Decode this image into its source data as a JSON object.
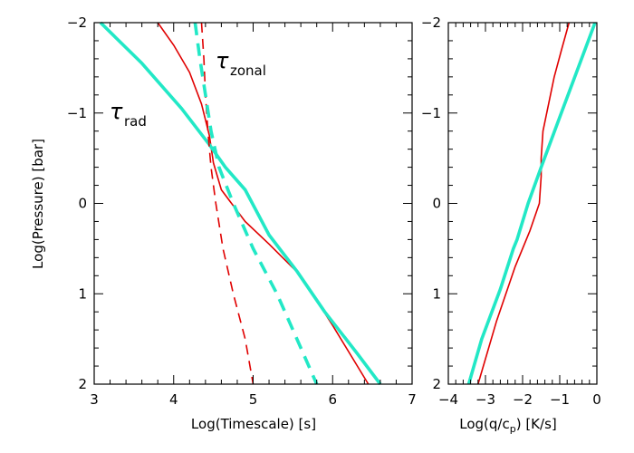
{
  "chart_data": [
    {
      "type": "line",
      "xlabel": "Log(Timescale)  [s]",
      "ylabel": "Log(Pressure)  [bar]",
      "xlim": [
        3,
        7
      ],
      "ylim": [
        2,
        -2
      ],
      "xticks": [
        "3",
        "4",
        "5",
        "6",
        "7"
      ],
      "yticks": [
        "−2",
        "−1",
        "0",
        "1",
        "2"
      ],
      "annotations": [
        {
          "symbol": "τ",
          "subscript": "rad"
        },
        {
          "symbol": "τ",
          "subscript": "zonal"
        }
      ],
      "series": [
        {
          "name": "tau_rad (red)",
          "color": "#e00000",
          "style": "solid",
          "x": [
            3.8,
            4.0,
            4.2,
            4.35,
            4.45,
            4.5,
            4.6,
            4.9,
            5.2,
            5.6,
            6.0,
            6.45
          ],
          "y": [
            -2.0,
            -1.75,
            -1.45,
            -1.1,
            -0.75,
            -0.45,
            -0.15,
            0.2,
            0.45,
            0.8,
            1.35,
            2.0
          ]
        },
        {
          "name": "tau_rad (cyan)",
          "color": "#22e8c6",
          "style": "solid",
          "x": [
            3.08,
            3.6,
            4.1,
            4.45,
            4.65,
            4.9,
            5.2,
            5.55,
            5.9,
            6.3,
            6.6
          ],
          "y": [
            -2.0,
            -1.55,
            -1.05,
            -0.65,
            -0.4,
            -0.15,
            0.35,
            0.75,
            1.2,
            1.65,
            2.0
          ]
        },
        {
          "name": "tau_zonal (red)",
          "color": "#e00000",
          "style": "dashed",
          "x": [
            4.35,
            4.38,
            4.4,
            4.43,
            4.47,
            4.53,
            4.62,
            4.75,
            4.9,
            5.0
          ],
          "y": [
            -2.0,
            -1.6,
            -1.2,
            -0.8,
            -0.4,
            0.0,
            0.5,
            1.0,
            1.5,
            2.0
          ]
        },
        {
          "name": "tau_zonal (cyan)",
          "color": "#22e8c6",
          "style": "dashed",
          "x": [
            4.27,
            4.33,
            4.4,
            4.47,
            4.57,
            4.75,
            5.0,
            5.3,
            5.55,
            5.8
          ],
          "y": [
            -2.0,
            -1.6,
            -1.2,
            -0.8,
            -0.4,
            0.0,
            0.5,
            1.0,
            1.5,
            2.0
          ]
        }
      ]
    },
    {
      "type": "line",
      "xlabel": "Log(q/c",
      "xlabel_sub": "p",
      "xlabel_tail": ")  [K/s]",
      "xlim": [
        -4,
        0
      ],
      "ylim": [
        2,
        -2
      ],
      "xticks": [
        "−4",
        "−3",
        "−2",
        "−1",
        "0"
      ],
      "yticks": [
        "−2",
        "−1",
        "0",
        "1",
        "2"
      ],
      "series": [
        {
          "name": "heating (red)",
          "color": "#e00000",
          "style": "solid",
          "x": [
            -0.75,
            -0.95,
            -1.15,
            -1.3,
            -1.45,
            -1.5,
            -1.5,
            -1.55,
            -1.8,
            -2.2,
            -2.7,
            -3.2
          ],
          "y": [
            -2.0,
            -1.7,
            -1.4,
            -1.1,
            -0.8,
            -0.5,
            -0.3,
            0.0,
            0.3,
            0.7,
            1.3,
            2.0
          ]
        },
        {
          "name": "heating (cyan)",
          "color": "#22e8c6",
          "style": "solid",
          "x": [
            -0.05,
            -0.55,
            -1.05,
            -1.5,
            -1.85,
            -2.15,
            -2.25,
            -2.6,
            -3.1,
            -3.45
          ],
          "y": [
            -2.0,
            -1.45,
            -0.9,
            -0.4,
            0.0,
            0.4,
            0.5,
            0.95,
            1.5,
            2.0
          ]
        }
      ]
    }
  ]
}
